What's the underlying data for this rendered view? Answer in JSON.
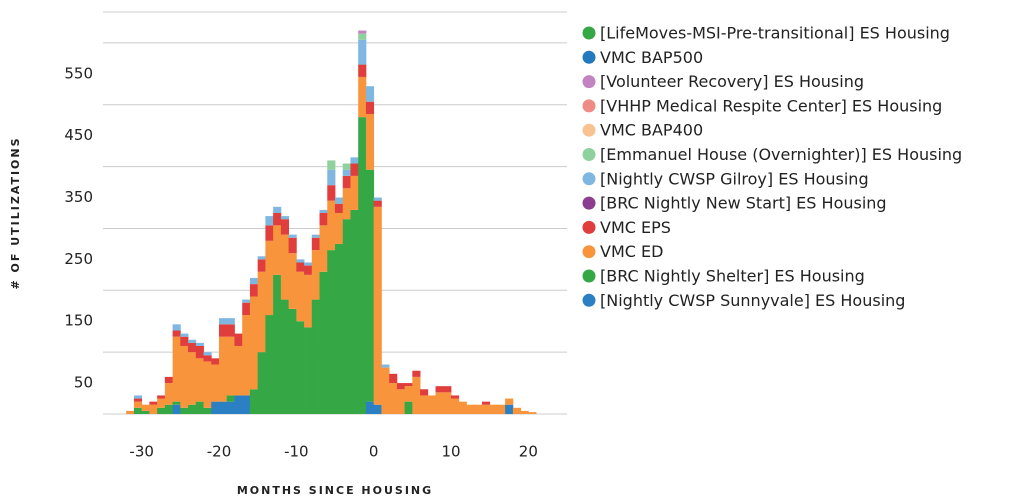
{
  "chart_data": {
    "type": "histogram",
    "stacked": true,
    "xlabel": "MONTHS SINCE HOUSING",
    "ylabel": "# OF UTILIZATIONS",
    "xlim": [
      -35,
      25
    ],
    "xticks": [
      -30,
      -20,
      -10,
      0,
      10,
      20
    ],
    "ylim": [
      0,
      650
    ],
    "yticks": [
      50,
      150,
      250,
      350,
      450,
      550
    ],
    "ygrid": [
      0,
      100,
      200,
      300,
      400,
      500,
      600,
      650
    ],
    "legend": "right",
    "bins": [
      -34,
      -33,
      -32,
      -31,
      -30,
      -29,
      -28,
      -27,
      -26,
      -25,
      -24,
      -23,
      -22,
      -21,
      -20,
      -19,
      -18,
      -17,
      -16,
      -15,
      -14,
      -13,
      -12,
      -11,
      -10,
      -9,
      -8,
      -7,
      -6,
      -5,
      -4,
      -3,
      -2,
      -1,
      0,
      1,
      2,
      3,
      4,
      5,
      6,
      7,
      8,
      9,
      10,
      11,
      12,
      13,
      14,
      15,
      16,
      17,
      18,
      19,
      20,
      21,
      22
    ],
    "series": [
      {
        "name": "[LifeMoves-MSI-Pre-transitional] ES Housing",
        "color": "#35a845",
        "values": [
          0,
          0,
          0,
          0,
          0,
          0,
          0,
          0,
          0,
          0,
          0,
          0,
          0,
          0,
          0,
          0,
          0,
          0,
          0,
          0,
          0,
          0,
          0,
          0,
          0,
          0,
          0,
          0,
          0,
          0,
          0,
          0,
          0,
          0,
          0,
          0,
          0,
          0,
          0,
          0,
          0,
          0,
          0,
          0,
          0,
          0,
          0,
          0,
          0,
          0,
          0,
          0,
          0,
          0,
          0,
          0
        ]
      },
      {
        "name": "VMC BAP500",
        "color": "#2379bd",
        "values": [
          0,
          0,
          0,
          0,
          0,
          0,
          0,
          0,
          0,
          0,
          0,
          0,
          0,
          0,
          0,
          0,
          0,
          0,
          0,
          0,
          0,
          0,
          0,
          0,
          0,
          0,
          0,
          0,
          0,
          0,
          0,
          0,
          0,
          0,
          0,
          0,
          0,
          0,
          0,
          0,
          0,
          0,
          0,
          0,
          0,
          0,
          0,
          0,
          0,
          0,
          0,
          0,
          0,
          0,
          0,
          0
        ]
      },
      {
        "name": "[Volunteer Recovery] ES Housing",
        "color": "#c184c0",
        "values": [
          0,
          0,
          0,
          0,
          0,
          0,
          0,
          0,
          0,
          0,
          0,
          0,
          0,
          0,
          0,
          0,
          0,
          0,
          0,
          0,
          0,
          0,
          0,
          0,
          0,
          0,
          0,
          0,
          0,
          0,
          0,
          0,
          5,
          0,
          0,
          0,
          0,
          0,
          0,
          0,
          0,
          0,
          0,
          0,
          0,
          0,
          0,
          0,
          0,
          0,
          0,
          0,
          0,
          0,
          0,
          0
        ]
      },
      {
        "name": "[VHHP Medical Respite Center] ES Housing",
        "color": "#ee8b84",
        "values": [
          0,
          0,
          0,
          0,
          0,
          0,
          0,
          0,
          0,
          0,
          0,
          0,
          0,
          0,
          0,
          0,
          0,
          0,
          0,
          0,
          0,
          0,
          0,
          0,
          0,
          0,
          0,
          0,
          0,
          0,
          0,
          0,
          0,
          0,
          0,
          0,
          0,
          0,
          0,
          0,
          0,
          0,
          0,
          0,
          0,
          0,
          0,
          0,
          0,
          0,
          0,
          0,
          0,
          0,
          0,
          0
        ]
      },
      {
        "name": "VMC BAP400",
        "color": "#f9c293",
        "values": [
          0,
          0,
          0,
          0,
          0,
          0,
          0,
          0,
          0,
          0,
          0,
          0,
          0,
          0,
          0,
          0,
          0,
          0,
          0,
          0,
          0,
          0,
          0,
          0,
          0,
          0,
          0,
          0,
          0,
          0,
          0,
          0,
          0,
          0,
          0,
          0,
          0,
          0,
          0,
          0,
          0,
          0,
          0,
          0,
          0,
          0,
          0,
          0,
          0,
          0,
          0,
          0,
          0,
          0,
          0,
          0
        ]
      },
      {
        "name": "[Emmanuel House (Overnighter)] ES Housing",
        "color": "#8ed19d",
        "values": [
          0,
          0,
          0,
          0,
          0,
          0,
          0,
          0,
          0,
          0,
          0,
          0,
          0,
          0,
          0,
          0,
          0,
          0,
          0,
          0,
          0,
          0,
          0,
          0,
          0,
          0,
          0,
          0,
          15,
          0,
          10,
          0,
          10,
          0,
          0,
          0,
          0,
          0,
          0,
          0,
          0,
          0,
          0,
          0,
          0,
          0,
          0,
          0,
          0,
          0,
          0,
          0,
          0,
          0,
          0,
          0
        ]
      },
      {
        "name": "[Nightly CWSP Gilroy] ES Housing",
        "color": "#7fb7e1",
        "values": [
          0,
          0,
          0,
          5,
          0,
          0,
          0,
          0,
          10,
          5,
          5,
          5,
          5,
          0,
          10,
          10,
          0,
          5,
          10,
          5,
          15,
          10,
          5,
          5,
          5,
          5,
          5,
          5,
          25,
          10,
          10,
          10,
          40,
          25,
          5,
          5,
          0,
          0,
          0,
          0,
          0,
          0,
          0,
          0,
          0,
          0,
          0,
          0,
          0,
          0,
          0,
          0,
          0,
          0,
          0,
          0
        ]
      },
      {
        "name": "[BRC Nightly New Start] ES Housing",
        "color": "#8c3d90",
        "values": [
          0,
          0,
          0,
          0,
          0,
          0,
          0,
          0,
          0,
          0,
          0,
          0,
          0,
          0,
          0,
          0,
          0,
          0,
          0,
          0,
          0,
          0,
          0,
          0,
          0,
          0,
          0,
          0,
          0,
          0,
          0,
          0,
          0,
          0,
          0,
          0,
          0,
          0,
          0,
          0,
          0,
          0,
          0,
          0,
          0,
          0,
          0,
          0,
          0,
          0,
          0,
          0,
          0,
          0,
          0,
          0
        ]
      },
      {
        "name": "VMC EPS",
        "color": "#e03e3c",
        "values": [
          0,
          0,
          0,
          5,
          0,
          5,
          5,
          10,
          10,
          15,
          15,
          20,
          10,
          10,
          20,
          20,
          20,
          20,
          20,
          20,
          25,
          20,
          25,
          25,
          15,
          15,
          20,
          20,
          25,
          15,
          20,
          20,
          20,
          20,
          10,
          0,
          15,
          10,
          5,
          10,
          10,
          0,
          10,
          10,
          5,
          0,
          0,
          0,
          5,
          0,
          0,
          0,
          0,
          0,
          0,
          0
        ]
      },
      {
        "name": "VMC ED",
        "color": "#f8953c",
        "values": [
          0,
          0,
          5,
          10,
          10,
          15,
          15,
          35,
          105,
          100,
          85,
          70,
          75,
          60,
          105,
          95,
          80,
          130,
          150,
          130,
          120,
          80,
          105,
          90,
          80,
          85,
          80,
          75,
          80,
          50,
          50,
          55,
          65,
          90,
          320,
          75,
          50,
          40,
          25,
          60,
          30,
          30,
          35,
          35,
          25,
          20,
          15,
          15,
          15,
          15,
          15,
          10,
          10,
          5,
          3,
          0
        ]
      },
      {
        "name": "[BRC Nightly Shelter] ES Housing",
        "color": "#35a845",
        "values": [
          0,
          0,
          0,
          10,
          5,
          0,
          10,
          15,
          5,
          10,
          15,
          20,
          10,
          0,
          0,
          10,
          0,
          0,
          40,
          100,
          160,
          225,
          185,
          170,
          150,
          140,
          185,
          230,
          265,
          275,
          315,
          330,
          480,
          375,
          0,
          0,
          0,
          0,
          20,
          0,
          0,
          0,
          0,
          0,
          0,
          0,
          0,
          0,
          0,
          0,
          0,
          0,
          0,
          0,
          0,
          0
        ]
      },
      {
        "name": "[Nightly CWSP Sunnyvale] ES Housing",
        "color": "#2b7fc3",
        "values": [
          0,
          0,
          0,
          0,
          0,
          0,
          0,
          0,
          15,
          0,
          0,
          0,
          0,
          20,
          20,
          20,
          30,
          30,
          0,
          0,
          0,
          0,
          0,
          0,
          0,
          0,
          0,
          0,
          0,
          0,
          0,
          0,
          0,
          20,
          15,
          0,
          0,
          0,
          0,
          0,
          0,
          0,
          0,
          0,
          0,
          0,
          0,
          0,
          0,
          0,
          0,
          15,
          0,
          0,
          0,
          0
        ]
      }
    ]
  }
}
